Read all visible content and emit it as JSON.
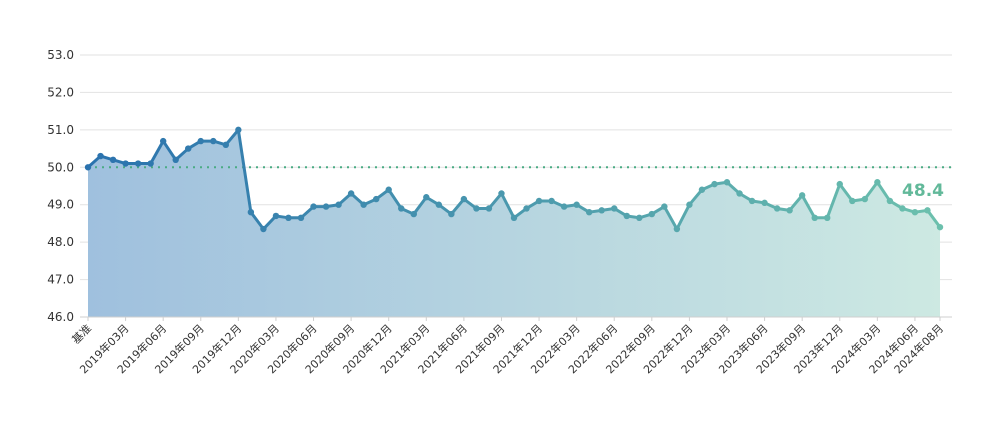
{
  "chart_data": {
    "type": "line",
    "title": "",
    "xlabel": "",
    "ylabel": "",
    "ylim": [
      46.0,
      53.0
    ],
    "y_ticks": [
      "46.0",
      "47.0",
      "48.0",
      "49.0",
      "50.0",
      "51.0",
      "52.0",
      "53.0"
    ],
    "reference_line": 50.0,
    "grid": true,
    "line_gradient": [
      "#2a72ae",
      "#6cc0ad"
    ],
    "area_gradient": [
      "#9fc0de",
      "#cde9e2"
    ],
    "reference_color": "#4aab84",
    "end_label": "48.4",
    "end_label_color": "#62b99a",
    "x_tick_labels": [
      "基准",
      "2019年03月",
      "2019年06月",
      "2019年09月",
      "2019年12月",
      "2020年03月",
      "2020年06月",
      "2020年09月",
      "2020年12月",
      "2021年03月",
      "2021年06月",
      "2021年09月",
      "2021年12月",
      "2022年03月",
      "2022年06月",
      "2022年09月",
      "2022年12月",
      "2023年03月",
      "2023年06月",
      "2023年09月",
      "2023年12月",
      "2024年03月",
      "2024年06月",
      "2024年08月"
    ],
    "x_tick_index": [
      0,
      3,
      6,
      9,
      12,
      15,
      18,
      21,
      24,
      27,
      30,
      33,
      36,
      39,
      42,
      45,
      48,
      51,
      54,
      57,
      60,
      63,
      66,
      68
    ],
    "series": [
      {
        "values": [
          50.0,
          50.3,
          50.2,
          50.1,
          50.1,
          50.1,
          50.7,
          50.2,
          50.5,
          50.7,
          50.7,
          50.6,
          51.0,
          48.8,
          48.35,
          48.7,
          48.65,
          48.65,
          48.95,
          48.95,
          49.0,
          49.3,
          49.0,
          49.15,
          49.4,
          48.9,
          48.75,
          49.2,
          49.0,
          48.75,
          49.15,
          48.9,
          48.9,
          49.3,
          48.65,
          48.9,
          49.1,
          49.1,
          48.95,
          49.0,
          48.8,
          48.85,
          48.9,
          48.7,
          48.65,
          48.75,
          48.95,
          48.35,
          49.0,
          49.4,
          49.55,
          49.6,
          49.3,
          49.1,
          49.05,
          48.9,
          48.85,
          49.25,
          48.65,
          48.65,
          49.55,
          49.1,
          49.15,
          49.6,
          49.1,
          48.9,
          48.8,
          48.85,
          48.4
        ]
      }
    ]
  }
}
